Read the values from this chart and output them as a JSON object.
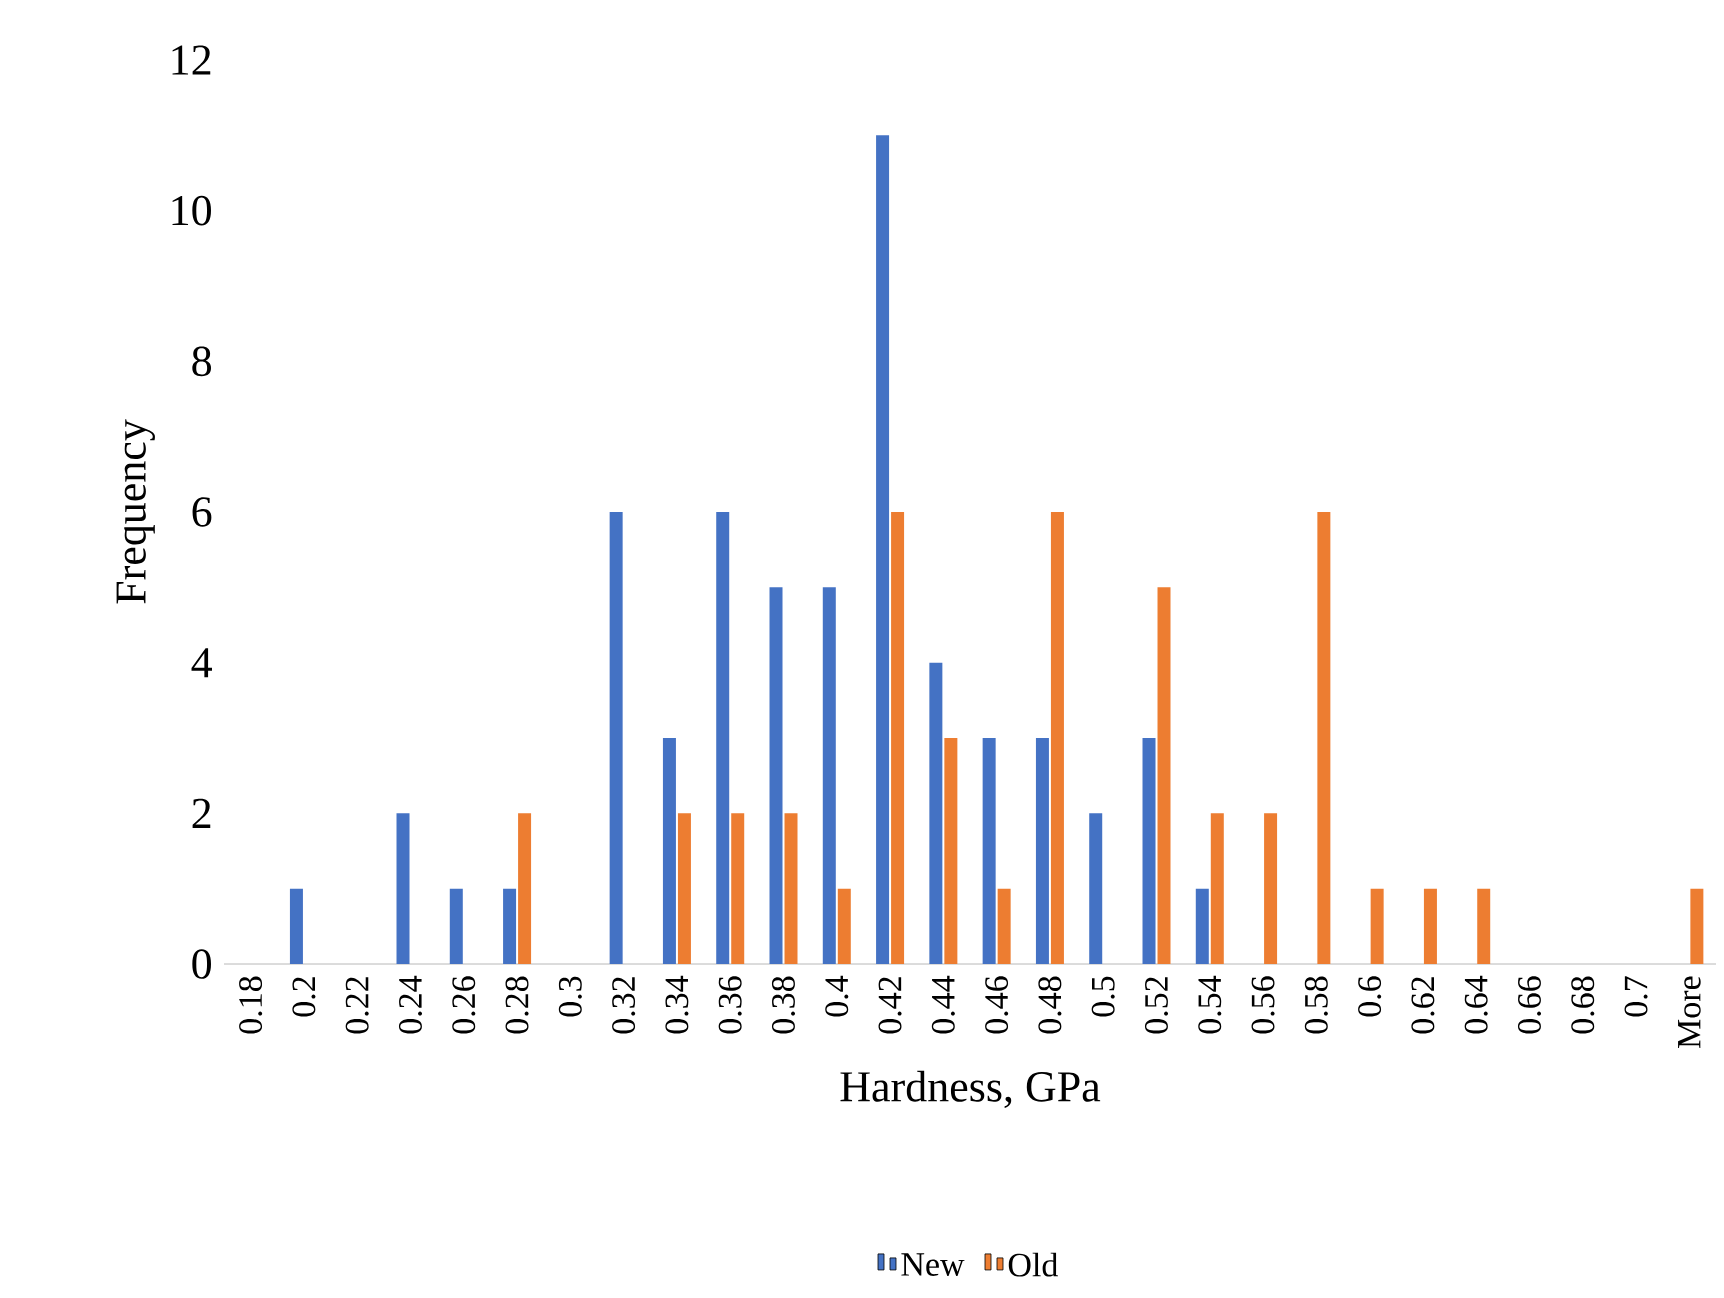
{
  "chart_data": {
    "type": "bar",
    "xlabel": "Hardness, GPa",
    "ylabel": "Frequency",
    "categories": [
      "0.18",
      "0.2",
      "0.22",
      "0.24",
      "0.26",
      "0.28",
      "0.3",
      "0.32",
      "0.34",
      "0.36",
      "0.38",
      "0.4",
      "0.42",
      "0.44",
      "0.46",
      "0.48",
      "0.5",
      "0.52",
      "0.54",
      "0.56",
      "0.58",
      "0.6",
      "0.62",
      "0.64",
      "0.66",
      "0.68",
      "0.7",
      "More"
    ],
    "series": [
      {
        "name": "New",
        "color": "#4472c4",
        "values": [
          0,
          1,
          0,
          2,
          1,
          1,
          0,
          6,
          3,
          6,
          5,
          5,
          11,
          4,
          3,
          3,
          2,
          3,
          1,
          0,
          0,
          0,
          0,
          0,
          0,
          0,
          0,
          0
        ]
      },
      {
        "name": "Old",
        "color": "#ed7d31",
        "values": [
          0,
          0,
          0,
          0,
          0,
          2,
          0,
          0,
          2,
          2,
          2,
          1,
          6,
          3,
          1,
          6,
          0,
          5,
          2,
          2,
          6,
          1,
          1,
          1,
          0,
          0,
          0,
          1
        ]
      }
    ],
    "ylim": [
      0,
      12
    ],
    "yticks": [
      0,
      2,
      4,
      6,
      8,
      10,
      12
    ],
    "grid": false,
    "legend": "bottom"
  }
}
